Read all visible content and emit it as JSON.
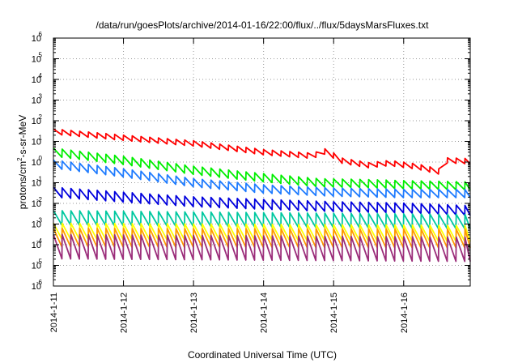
{
  "chart_data": {
    "type": "line",
    "title": "/data/run/goesPlots/archive/2014-01-16/22:00/flux/../flux/5daysMarsFluxes.txt",
    "xlabel": "Coordinated Universal Time (UTC)",
    "ylabel": {
      "prefix": "protons/cm",
      "sup": "2",
      "suffix": "-s-sr-MeV"
    },
    "x_ticks": [
      "2014-1-11",
      "2014-1-12",
      "2014-1-13",
      "2014-1-14",
      "2014-1-15",
      "2014-1-16"
    ],
    "x_range_days": [
      0,
      5.95
    ],
    "y_scale": "log",
    "y_ticks": [
      {
        "base": "10",
        "exp": "-6"
      },
      {
        "base": "10",
        "exp": "-5"
      },
      {
        "base": "10",
        "exp": "-4"
      },
      {
        "base": "10",
        "exp": "-3"
      },
      {
        "base": "10",
        "exp": "-2"
      },
      {
        "base": "10",
        "exp": "-1"
      },
      {
        "base": "10",
        "exp": "0"
      },
      {
        "base": "10",
        "exp": "1"
      },
      {
        "base": "10",
        "exp": "2"
      },
      {
        "base": "10",
        "exp": "3"
      },
      {
        "base": "10",
        "exp": "4"
      },
      {
        "base": "10",
        "exp": "5"
      },
      {
        "base": "10",
        "exp": "6"
      }
    ],
    "ylim": [
      1e-06,
      1000000.0
    ],
    "grid": true,
    "legend": "none",
    "series": [
      {
        "color": "#ff0000",
        "style": "sawtooth",
        "period_days": 0.125,
        "peak_ratio": 1.8,
        "points": [
          [
            0,
            30
          ],
          [
            1,
            15
          ],
          [
            2,
            8
          ],
          [
            3,
            3
          ],
          [
            3.7,
            2
          ],
          [
            3.9,
            3.5
          ],
          [
            4.1,
            1.2
          ],
          [
            4.5,
            0.7
          ],
          [
            4.8,
            0.9
          ],
          [
            5.2,
            0.6
          ],
          [
            5.5,
            0.35
          ],
          [
            5.6,
            1.2
          ],
          [
            5.95,
            1.1
          ]
        ]
      },
      {
        "color": "#00ee00",
        "style": "sawtooth",
        "period_days": 0.125,
        "peak_ratio": 2.5,
        "points": [
          [
            0,
            3
          ],
          [
            1,
            1.2
          ],
          [
            2,
            0.4
          ],
          [
            2.7,
            0.22
          ],
          [
            3.2,
            0.15
          ],
          [
            3.8,
            0.1
          ],
          [
            4.5,
            0.09
          ],
          [
            5,
            0.08
          ],
          [
            5.95,
            0.07
          ]
        ]
      },
      {
        "color": "#1e7bff",
        "style": "sawtooth",
        "period_days": 0.125,
        "peak_ratio": 2.5,
        "points": [
          [
            0,
            0.8
          ],
          [
            1,
            0.3
          ],
          [
            2,
            0.1
          ],
          [
            3,
            0.05
          ],
          [
            3.6,
            0.04
          ],
          [
            4,
            0.035
          ],
          [
            5,
            0.03
          ],
          [
            5.95,
            0.03
          ]
        ]
      },
      {
        "color": "#0000dd",
        "style": "sawtooth",
        "period_days": 0.125,
        "peak_ratio": 3,
        "points": [
          [
            0,
            0.035
          ],
          [
            1,
            0.02
          ],
          [
            2,
            0.012
          ],
          [
            3,
            0.009
          ],
          [
            4,
            0.007
          ],
          [
            5,
            0.006
          ],
          [
            5.95,
            0.0045
          ]
        ]
      },
      {
        "color": "#00c8a0",
        "style": "sawtooth",
        "period_days": 0.125,
        "peak_ratio": 5,
        "points": [
          [
            0,
            0.002
          ],
          [
            3,
            0.0016
          ],
          [
            5.95,
            0.0013
          ]
        ]
      },
      {
        "color": "#ffff00",
        "style": "sawtooth",
        "period_days": 0.125,
        "peak_ratio": 6,
        "points": [
          [
            0,
            0.00045
          ],
          [
            5.95,
            0.00035
          ]
        ]
      },
      {
        "color": "#ff9a00",
        "style": "sawtooth",
        "period_days": 0.125,
        "peak_ratio": 8,
        "points": [
          [
            0,
            0.00022
          ],
          [
            5.95,
            0.0002
          ]
        ]
      },
      {
        "color": "#9b2d7a",
        "style": "sawtooth",
        "period_days": 0.125,
        "peak_ratio": 15,
        "points": [
          [
            0,
            8e-05
          ],
          [
            5.95,
            6e-05
          ]
        ]
      }
    ]
  }
}
